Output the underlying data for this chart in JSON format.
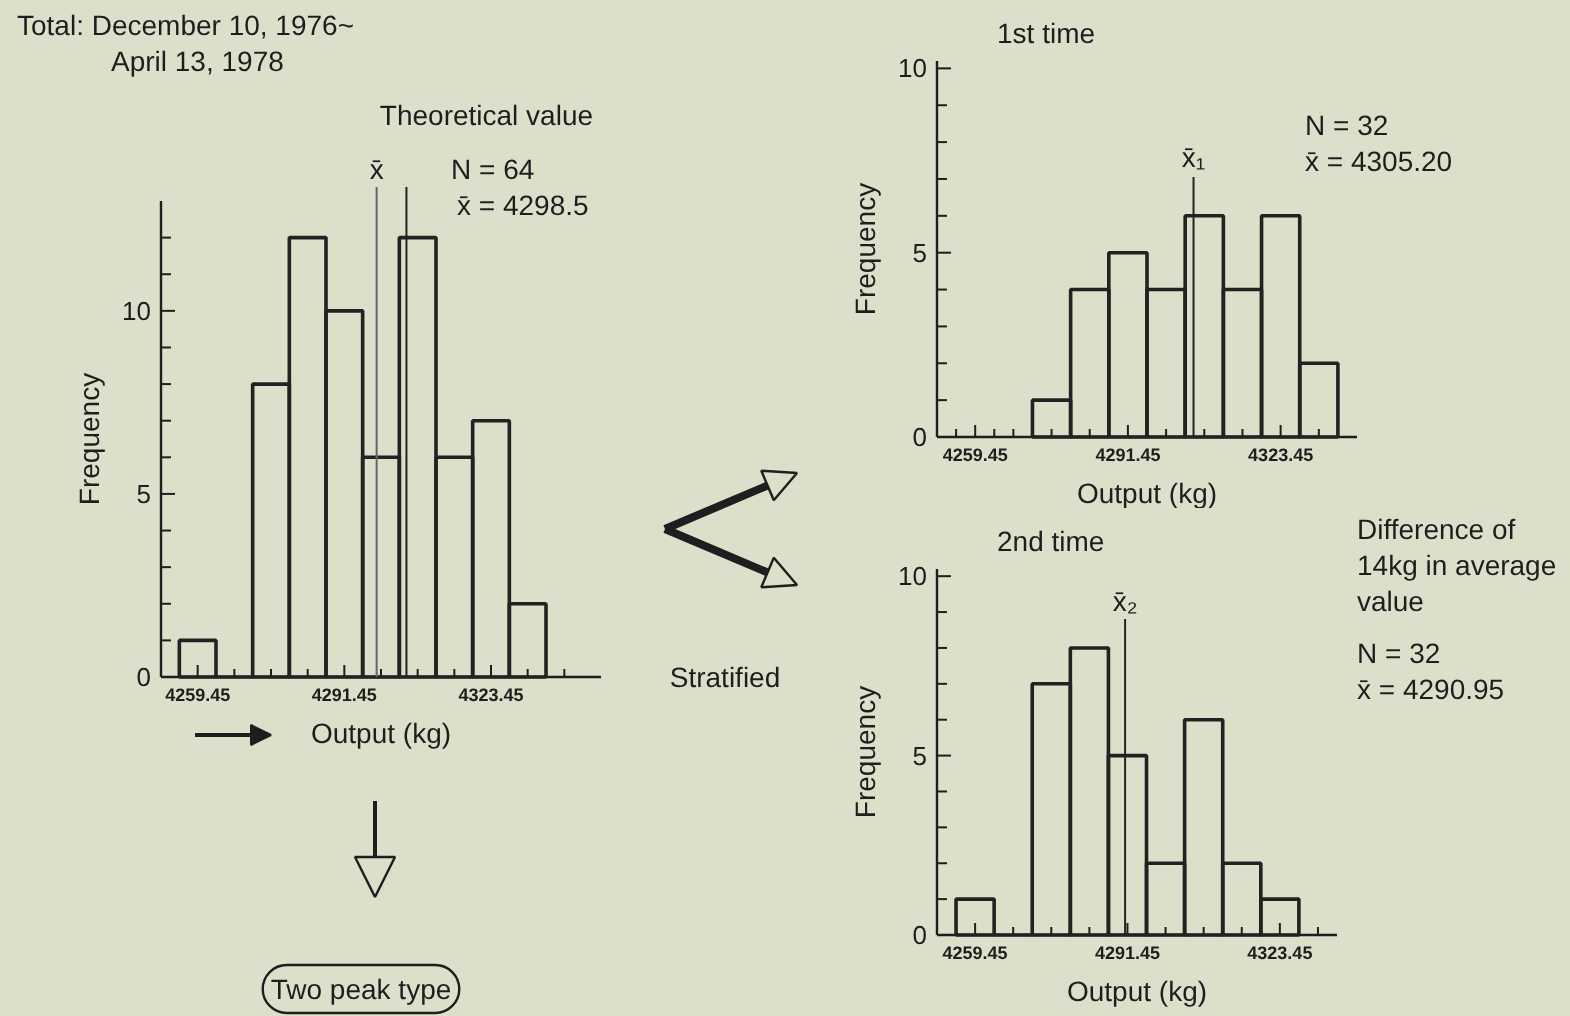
{
  "chart_data": [
    {
      "type": "histogram",
      "bins": [
        4255.45,
        4263.45,
        4271.45,
        4279.45,
        4287.45,
        4295.45,
        4303.45,
        4311.45,
        4319.45,
        4327.45,
        4335.45
      ],
      "values": [
        1,
        0,
        8,
        12,
        10,
        6,
        12,
        6,
        7,
        2
      ],
      "color": "#222222",
      "xlabel": "Output (kg)",
      "ylabel": "Frequency",
      "xlim": [
        4251.45,
        4347.45
      ],
      "ylim": [
        0,
        13
      ],
      "xticks": [
        {
          "value": 4255.45,
          "label": null
        },
        4259.45,
        {
          "value": 4263.45,
          "label": null
        },
        {
          "value": 4267.45,
          "label": null
        },
        {
          "value": 4271.45,
          "label": null
        },
        {
          "value": 4275.45,
          "label": null
        },
        {
          "value": 4279.45,
          "label": null
        },
        {
          "value": 4283.45,
          "label": null
        },
        {
          "value": 4287.45,
          "label": null
        },
        4291.45,
        {
          "value": 4295.45,
          "label": null
        },
        {
          "value": 4299.45,
          "label": null
        },
        {
          "value": 4303.45,
          "label": null
        },
        {
          "value": 4307.45,
          "label": null
        },
        {
          "value": 4311.45,
          "label": null
        },
        {
          "value": 4315.45,
          "label": null
        },
        {
          "value": 4319.45,
          "label": null
        },
        4323.45,
        {
          "value": 4327.45,
          "label": null
        },
        {
          "value": 4331.45,
          "label": null
        },
        {
          "value": 4335.45,
          "label": null
        },
        {
          "value": 4339.45,
          "label": null
        }
      ],
      "yticks": [
        0,
        {
          "value": 1,
          "label": null
        },
        {
          "value": 2,
          "label": null
        },
        {
          "value": 3,
          "label": null
        },
        {
          "value": 4,
          "label": null
        },
        5,
        {
          "value": 6,
          "label": null
        },
        {
          "value": 7,
          "label": null
        },
        {
          "value": 8,
          "label": null
        },
        {
          "value": 9,
          "label": null
        },
        10,
        {
          "value": 11,
          "label": null
        },
        {
          "value": 12,
          "label": null
        }
      ],
      "ref_lines": [
        {
          "axis": "x",
          "value": 4298.5,
          "label": "x̄",
          "color": "#666666"
        },
        {
          "axis": "x",
          "value": 4305,
          "label": "Theoretical value",
          "color": "#222222"
        }
      ],
      "annotations": [
        "Total: December 10, 1976~",
        "April 13, 1978",
        "N = 64",
        "x̄ = 4298.5",
        "Stratified",
        "Two peak type"
      ]
    },
    {
      "type": "histogram",
      "title": "1st time",
      "bins": [
        4271.45,
        4279.45,
        4287.45,
        4295.45,
        4303.45,
        4311.45,
        4319.45,
        4327.45,
        4335.45
      ],
      "values": [
        1,
        4,
        5,
        4,
        6,
        4,
        6,
        2
      ],
      "color": "#222222",
      "xlabel": "Output (kg)",
      "ylabel": "Frequency",
      "xlim": [
        4251.45,
        4339.45
      ],
      "ylim": [
        0,
        10.2
      ],
      "xticks": [
        {
          "value": 4255.45,
          "label": null
        },
        4259.45,
        {
          "value": 4263.45,
          "label": null
        },
        {
          "value": 4267.45,
          "label": null
        },
        {
          "value": 4271.45,
          "label": null
        },
        {
          "value": 4275.45,
          "label": null
        },
        {
          "value": 4279.45,
          "label": null
        },
        {
          "value": 4283.45,
          "label": null
        },
        {
          "value": 4287.45,
          "label": null
        },
        4291.45,
        {
          "value": 4295.45,
          "label": null
        },
        {
          "value": 4299.45,
          "label": null
        },
        {
          "value": 4303.45,
          "label": null
        },
        {
          "value": 4307.45,
          "label": null
        },
        {
          "value": 4311.45,
          "label": null
        },
        {
          "value": 4315.45,
          "label": null
        },
        {
          "value": 4319.45,
          "label": null
        },
        4323.45,
        {
          "value": 4327.45,
          "label": null
        },
        {
          "value": 4331.45,
          "label": null
        },
        {
          "value": 4335.45,
          "label": null
        }
      ],
      "yticks": [
        0,
        {
          "value": 1,
          "label": null
        },
        {
          "value": 2,
          "label": null
        },
        {
          "value": 3,
          "label": null
        },
        {
          "value": 4,
          "label": null
        },
        5,
        {
          "value": 6,
          "label": null
        },
        {
          "value": 7,
          "label": null
        },
        {
          "value": 8,
          "label": null
        },
        {
          "value": 9,
          "label": null
        },
        10
      ],
      "ref_lines": [
        {
          "axis": "x",
          "value": 4305.2,
          "label": "x̄₁",
          "color": "#222222"
        }
      ],
      "annotations": [
        "N = 32",
        "x̄ = 4305.20"
      ]
    },
    {
      "type": "histogram",
      "title": "2nd time",
      "bins": [
        4255.45,
        4263.45,
        4271.45,
        4279.45,
        4287.45,
        4295.45,
        4303.45,
        4311.45,
        4319.45,
        4327.45
      ],
      "values": [
        1,
        0,
        7,
        8,
        5,
        2,
        6,
        2,
        1
      ],
      "color": "#222222",
      "xlabel": "Output (kg)",
      "ylabel": "Frequency",
      "xlim": [
        4251.45,
        4335.45
      ],
      "ylim": [
        0,
        10.2
      ],
      "xticks": [
        {
          "value": 4255.45,
          "label": null
        },
        4259.45,
        {
          "value": 4263.45,
          "label": null
        },
        {
          "value": 4267.45,
          "label": null
        },
        {
          "value": 4271.45,
          "label": null
        },
        {
          "value": 4275.45,
          "label": null
        },
        {
          "value": 4279.45,
          "label": null
        },
        {
          "value": 4283.45,
          "label": null
        },
        {
          "value": 4287.45,
          "label": null
        },
        4291.45,
        {
          "value": 4295.45,
          "label": null
        },
        {
          "value": 4299.45,
          "label": null
        },
        {
          "value": 4303.45,
          "label": null
        },
        {
          "value": 4307.45,
          "label": null
        },
        {
          "value": 4311.45,
          "label": null
        },
        {
          "value": 4315.45,
          "label": null
        },
        {
          "value": 4319.45,
          "label": null
        },
        4323.45,
        {
          "value": 4327.45,
          "label": null
        },
        {
          "value": 4331.45,
          "label": null
        }
      ],
      "yticks": [
        0,
        {
          "value": 1,
          "label": null
        },
        {
          "value": 2,
          "label": null
        },
        {
          "value": 3,
          "label": null
        },
        {
          "value": 4,
          "label": null
        },
        5,
        {
          "value": 6,
          "label": null
        },
        {
          "value": 7,
          "label": null
        },
        {
          "value": 8,
          "label": null
        },
        {
          "value": 9,
          "label": null
        },
        10
      ],
      "ref_lines": [
        {
          "axis": "x",
          "value": 4290.95,
          "label": "x̄₂",
          "color": "#222222"
        }
      ],
      "annotations": [
        "Difference of",
        "14kg in average",
        "value",
        "N = 32",
        "x̄ = 4290.95"
      ]
    }
  ]
}
